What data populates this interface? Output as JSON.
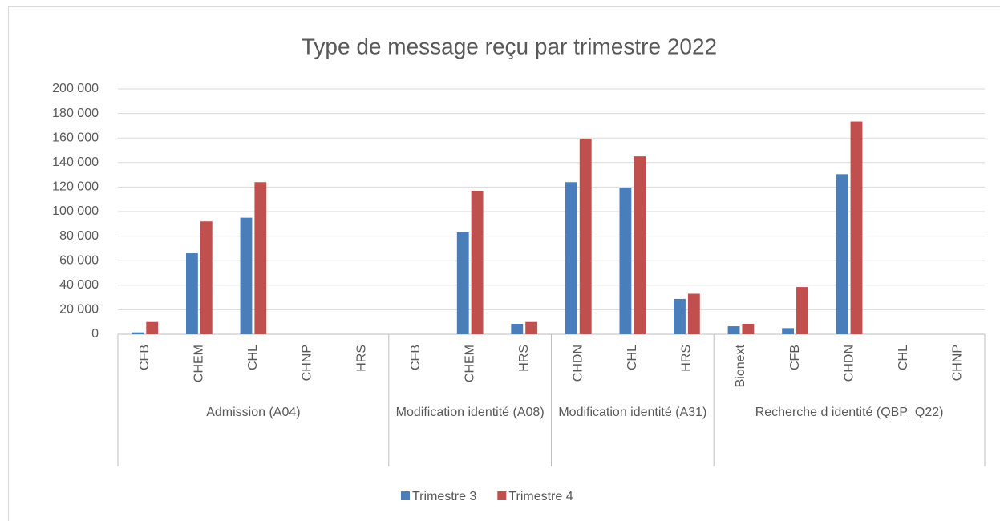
{
  "chart_data": {
    "type": "bar",
    "title": "Type de message reçu par trimestre 2022",
    "categories": [
      "CFB",
      "CHEM",
      "CHL",
      "CHNP",
      "HRS",
      "CFB",
      "CHEM",
      "HRS",
      "CHDN",
      "CHL",
      "HRS",
      "Bionext",
      "CFB",
      "CHDN",
      "CHL",
      "CHNP"
    ],
    "groups": [
      {
        "name": "Admission (A04)",
        "size": 5
      },
      {
        "name": "Modification identité (A08)",
        "size": 3
      },
      {
        "name": "Modification identité (A31)",
        "size": 3
      },
      {
        "name": "Recherche d identité (QBP_Q22)",
        "size": 5
      }
    ],
    "series": [
      {
        "name": "Trimestre 3",
        "color": "#4a7ebb",
        "values": [
          1500,
          66000,
          95000,
          0,
          0,
          0,
          83000,
          8500,
          124000,
          119500,
          28800,
          6500,
          5000,
          130500,
          0,
          0
        ]
      },
      {
        "name": "Trimestre 4",
        "color": "#c0504d",
        "values": [
          10000,
          92000,
          124000,
          0,
          0,
          0,
          117000,
          10000,
          159500,
          145000,
          33000,
          8500,
          38500,
          173500,
          0,
          0
        ]
      }
    ],
    "ylim": [
      0,
      200000
    ],
    "yticks": [
      0,
      {
        "value": 20000,
        "label": "20 000"
      },
      {
        "value": 40000,
        "label": "40 000"
      },
      {
        "value": 60000,
        "label": "60 000"
      },
      {
        "value": 80000,
        "label": "80 000"
      },
      {
        "value": 100000,
        "label": "100 000"
      },
      {
        "value": 120000,
        "label": "120 000"
      },
      {
        "value": 140000,
        "label": "140 000"
      },
      {
        "value": 160000,
        "label": "160 000"
      },
      {
        "value": 180000,
        "label": "180 000"
      },
      {
        "value": 200000,
        "label": "200 000"
      }
    ],
    "grid": true,
    "legend": "bottom"
  }
}
